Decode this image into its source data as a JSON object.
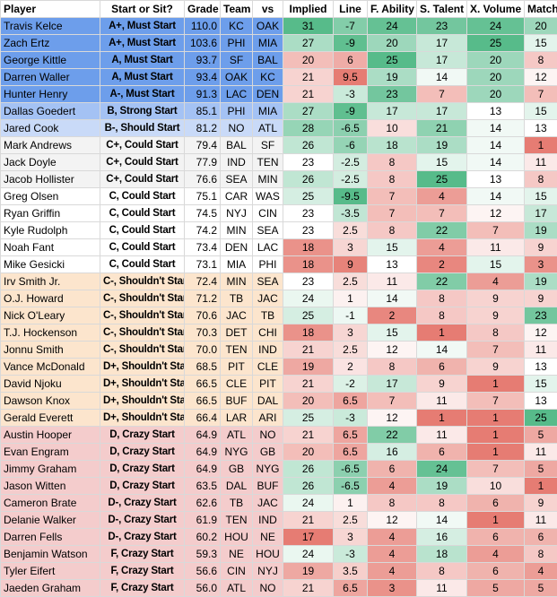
{
  "headers": [
    "Player",
    "Start or Sit?",
    "Grade",
    "Team",
    "vs",
    "Implied",
    "Line",
    "F. Ability",
    "S. Talent",
    "X. Volume",
    "Matchup"
  ],
  "tier_colors": {
    "A": "#6d9eeb",
    "B": "#a4c2f4",
    "B-": "#c9daf8",
    "C+": "#f3f3f3",
    "C": "#ffffff",
    "C-": "#fce5cd",
    "D+": "#fce5cd",
    "D": "#f4cccc",
    "D-": "#f4cccc",
    "F": "#f4cccc"
  },
  "rows": [
    {
      "player": "Travis Kelce",
      "start": "A+, Must Start",
      "tier": "A",
      "grade": "110.0",
      "team": "KC",
      "vs": "OAK",
      "implied": "31",
      "line": "-7",
      "ability": "24",
      "talent": "23",
      "volume": "24",
      "matchup": "20"
    },
    {
      "player": "Zach Ertz",
      "start": "A+, Must Start",
      "tier": "A",
      "grade": "103.6",
      "team": "PHI",
      "vs": "MIA",
      "implied": "27",
      "line": "-9",
      "ability": "20",
      "talent": "17",
      "volume": "25",
      "matchup": "15"
    },
    {
      "player": "George Kittle",
      "start": "A, Must Start",
      "tier": "A",
      "grade": "93.7",
      "team": "SF",
      "vs": "BAL",
      "implied": "20",
      "line": "6",
      "ability": "25",
      "talent": "17",
      "volume": "20",
      "matchup": "8"
    },
    {
      "player": "Darren Waller",
      "start": "A, Must Start",
      "tier": "A",
      "grade": "93.4",
      "team": "OAK",
      "vs": "KC",
      "implied": "21",
      "line": "9.5",
      "ability": "19",
      "talent": "14",
      "volume": "20",
      "matchup": "12"
    },
    {
      "player": "Hunter Henry",
      "start": "A-, Must Start",
      "tier": "A",
      "grade": "91.3",
      "team": "LAC",
      "vs": "DEN",
      "implied": "21",
      "line": "-3",
      "ability": "23",
      "talent": "7",
      "volume": "20",
      "matchup": "7"
    },
    {
      "player": "Dallas Goedert",
      "start": "B, Strong Start",
      "tier": "B",
      "grade": "85.1",
      "team": "PHI",
      "vs": "MIA",
      "implied": "27",
      "line": "-9",
      "ability": "17",
      "talent": "17",
      "volume": "13",
      "matchup": "15"
    },
    {
      "player": "Jared Cook",
      "start": "B-, Should Start",
      "tier": "B-",
      "grade": "81.2",
      "team": "NO",
      "vs": "ATL",
      "implied": "28",
      "line": "-6.5",
      "ability": "10",
      "talent": "21",
      "volume": "14",
      "matchup": "13"
    },
    {
      "player": "Mark Andrews",
      "start": "C+, Could Start",
      "tier": "C+",
      "grade": "79.4",
      "team": "BAL",
      "vs": "SF",
      "implied": "26",
      "line": "-6",
      "ability": "18",
      "talent": "19",
      "volume": "14",
      "matchup": "1"
    },
    {
      "player": "Jack Doyle",
      "start": "C+, Could Start",
      "tier": "C+",
      "grade": "77.9",
      "team": "IND",
      "vs": "TEN",
      "implied": "23",
      "line": "-2.5",
      "ability": "8",
      "talent": "15",
      "volume": "14",
      "matchup": "11"
    },
    {
      "player": "Jacob Hollister",
      "start": "C+, Could Start",
      "tier": "C+",
      "grade": "76.6",
      "team": "SEA",
      "vs": "MIN",
      "implied": "26",
      "line": "-2.5",
      "ability": "8",
      "talent": "25",
      "volume": "13",
      "matchup": "8"
    },
    {
      "player": "Greg Olsen",
      "start": "C, Could Start",
      "tier": "C",
      "grade": "75.1",
      "team": "CAR",
      "vs": "WAS",
      "implied": "25",
      "line": "-9.5",
      "ability": "7",
      "talent": "4",
      "volume": "14",
      "matchup": "15"
    },
    {
      "player": "Ryan Griffin",
      "start": "C, Could Start",
      "tier": "C",
      "grade": "74.5",
      "team": "NYJ",
      "vs": "CIN",
      "implied": "23",
      "line": "-3.5",
      "ability": "7",
      "talent": "7",
      "volume": "12",
      "matchup": "17"
    },
    {
      "player": "Kyle Rudolph",
      "start": "C, Could Start",
      "tier": "C",
      "grade": "74.2",
      "team": "MIN",
      "vs": "SEA",
      "implied": "23",
      "line": "2.5",
      "ability": "8",
      "talent": "22",
      "volume": "7",
      "matchup": "19"
    },
    {
      "player": "Noah Fant",
      "start": "C, Could Start",
      "tier": "C",
      "grade": "73.4",
      "team": "DEN",
      "vs": "LAC",
      "implied": "18",
      "line": "3",
      "ability": "15",
      "talent": "4",
      "volume": "11",
      "matchup": "9"
    },
    {
      "player": "Mike Gesicki",
      "start": "C, Could Start",
      "tier": "C",
      "grade": "73.1",
      "team": "MIA",
      "vs": "PHI",
      "implied": "18",
      "line": "9",
      "ability": "13",
      "talent": "2",
      "volume": "15",
      "matchup": "3"
    },
    {
      "player": "Irv Smith Jr.",
      "start": "C-, Shouldn't Start",
      "tier": "C-",
      "grade": "72.4",
      "team": "MIN",
      "vs": "SEA",
      "implied": "23",
      "line": "2.5",
      "ability": "11",
      "talent": "22",
      "volume": "4",
      "matchup": "19"
    },
    {
      "player": "O.J. Howard",
      "start": "C-, Shouldn't Start",
      "tier": "C-",
      "grade": "71.2",
      "team": "TB",
      "vs": "JAC",
      "implied": "24",
      "line": "1",
      "ability": "14",
      "talent": "8",
      "volume": "9",
      "matchup": "9"
    },
    {
      "player": "Nick O'Leary",
      "start": "C-, Shouldn't Start",
      "tier": "C-",
      "grade": "70.6",
      "team": "JAC",
      "vs": "TB",
      "implied": "25",
      "line": "-1",
      "ability": "2",
      "talent": "8",
      "volume": "9",
      "matchup": "23"
    },
    {
      "player": "T.J. Hockenson",
      "start": "C-, Shouldn't Start",
      "tier": "C-",
      "grade": "70.3",
      "team": "DET",
      "vs": "CHI",
      "implied": "18",
      "line": "3",
      "ability": "15",
      "talent": "1",
      "volume": "8",
      "matchup": "12"
    },
    {
      "player": "Jonnu Smith",
      "start": "C-, Shouldn't Start",
      "tier": "C-",
      "grade": "70.0",
      "team": "TEN",
      "vs": "IND",
      "implied": "21",
      "line": "2.5",
      "ability": "12",
      "talent": "14",
      "volume": "7",
      "matchup": "11"
    },
    {
      "player": "Vance McDonald",
      "start": "D+, Shouldn't Start",
      "tier": "D+",
      "grade": "68.5",
      "team": "PIT",
      "vs": "CLE",
      "implied": "19",
      "line": "2",
      "ability": "8",
      "talent": "6",
      "volume": "9",
      "matchup": "13"
    },
    {
      "player": "David Njoku",
      "start": "D+, Shouldn't Start",
      "tier": "D+",
      "grade": "66.5",
      "team": "CLE",
      "vs": "PIT",
      "implied": "21",
      "line": "-2",
      "ability": "17",
      "talent": "9",
      "volume": "1",
      "matchup": "15"
    },
    {
      "player": "Dawson Knox",
      "start": "D+, Shouldn't Start",
      "tier": "D+",
      "grade": "66.5",
      "team": "BUF",
      "vs": "DAL",
      "implied": "20",
      "line": "6.5",
      "ability": "7",
      "talent": "11",
      "volume": "7",
      "matchup": "13"
    },
    {
      "player": "Gerald Everett",
      "start": "D+, Shouldn't Start",
      "tier": "D+",
      "grade": "66.4",
      "team": "LAR",
      "vs": "ARI",
      "implied": "25",
      "line": "-3",
      "ability": "12",
      "talent": "1",
      "volume": "1",
      "matchup": "25"
    },
    {
      "player": "Austin Hooper",
      "start": "D, Crazy Start",
      "tier": "D",
      "grade": "64.9",
      "team": "ATL",
      "vs": "NO",
      "implied": "21",
      "line": "6.5",
      "ability": "22",
      "talent": "11",
      "volume": "1",
      "matchup": "5"
    },
    {
      "player": "Evan Engram",
      "start": "D, Crazy Start",
      "tier": "D",
      "grade": "64.9",
      "team": "NYG",
      "vs": "GB",
      "implied": "20",
      "line": "6.5",
      "ability": "16",
      "talent": "6",
      "volume": "1",
      "matchup": "11"
    },
    {
      "player": "Jimmy Graham",
      "start": "D, Crazy Start",
      "tier": "D",
      "grade": "64.9",
      "team": "GB",
      "vs": "NYG",
      "implied": "26",
      "line": "-6.5",
      "ability": "6",
      "talent": "24",
      "volume": "7",
      "matchup": "5"
    },
    {
      "player": "Jason Witten",
      "start": "D, Crazy Start",
      "tier": "D",
      "grade": "63.5",
      "team": "DAL",
      "vs": "BUF",
      "implied": "26",
      "line": "-6.5",
      "ability": "4",
      "talent": "19",
      "volume": "10",
      "matchup": "1"
    },
    {
      "player": "Cameron Brate",
      "start": "D-, Crazy Start",
      "tier": "D-",
      "grade": "62.6",
      "team": "TB",
      "vs": "JAC",
      "implied": "24",
      "line": "1",
      "ability": "8",
      "talent": "8",
      "volume": "6",
      "matchup": "9"
    },
    {
      "player": "Delanie Walker",
      "start": "D-, Crazy Start",
      "tier": "D-",
      "grade": "61.9",
      "team": "TEN",
      "vs": "IND",
      "implied": "21",
      "line": "2.5",
      "ability": "12",
      "talent": "14",
      "volume": "1",
      "matchup": "11"
    },
    {
      "player": "Darren Fells",
      "start": "D-, Crazy Start",
      "tier": "D-",
      "grade": "60.2",
      "team": "HOU",
      "vs": "NE",
      "implied": "17",
      "line": "3",
      "ability": "4",
      "talent": "16",
      "volume": "6",
      "matchup": "6"
    },
    {
      "player": "Benjamin Watson",
      "start": "F, Crazy Start",
      "tier": "F",
      "grade": "59.3",
      "team": "NE",
      "vs": "HOU",
      "implied": "24",
      "line": "-3",
      "ability": "4",
      "talent": "18",
      "volume": "4",
      "matchup": "8"
    },
    {
      "player": "Tyler Eifert",
      "start": "F, Crazy Start",
      "tier": "F",
      "grade": "56.6",
      "team": "CIN",
      "vs": "NYJ",
      "implied": "19",
      "line": "3.5",
      "ability": "4",
      "talent": "8",
      "volume": "6",
      "matchup": "4"
    },
    {
      "player": "Jaeden Graham",
      "start": "F, Crazy Start",
      "tier": "F",
      "grade": "56.0",
      "team": "ATL",
      "vs": "NO",
      "implied": "21",
      "line": "6.5",
      "ability": "3",
      "talent": "11",
      "volume": "5",
      "matchup": "5"
    }
  ]
}
